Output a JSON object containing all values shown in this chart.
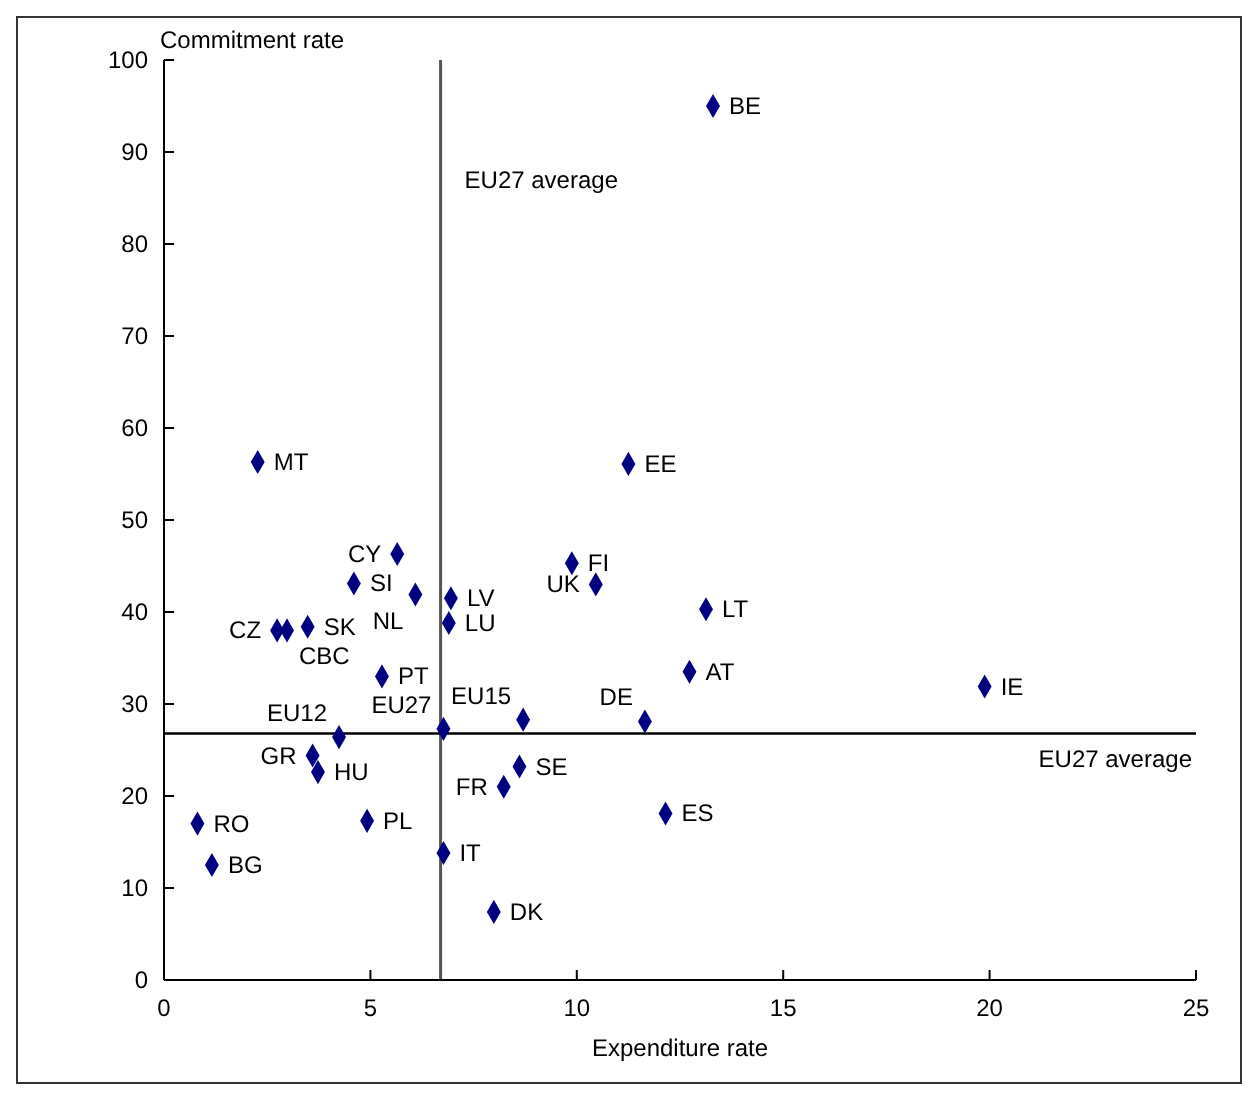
{
  "chart_data": {
    "type": "scatter",
    "xlabel": "Expenditure rate",
    "ylabel": "Commitment rate",
    "x": [
      13.3,
      2.27,
      11.25,
      5.65,
      9.88,
      4.6,
      6.09,
      6.95,
      10.46,
      13.13,
      6.9,
      3.48,
      2.74,
      2.98,
      5.28,
      12.73,
      19.88,
      11.65,
      8.7,
      6.77,
      4.24,
      3.6,
      8.61,
      3.73,
      8.23,
      12.15,
      0.81,
      4.92,
      6.77,
      1.16,
      7.99
    ],
    "series": [
      {
        "color": "#000080",
        "values": [
          95,
          56.3,
          56.1,
          46.3,
          45.3,
          43.1,
          41.9,
          41.5,
          43.0,
          40.3,
          38.8,
          38.4,
          38.0,
          38.0,
          33.0,
          33.5,
          31.9,
          28.1,
          28.3,
          27.3,
          26.4,
          24.4,
          23.2,
          22.6,
          21.0,
          18.1,
          17.0,
          17.3,
          13.8,
          12.5,
          7.4
        ]
      }
    ],
    "marker": "diamond",
    "xlim": [
      0,
      25
    ],
    "ylim": [
      0,
      100
    ],
    "xticks": [
      0,
      5,
      10,
      15,
      20,
      25
    ],
    "yticks": [
      0,
      10,
      20,
      30,
      40,
      50,
      60,
      70,
      80,
      90,
      100
    ],
    "grid": false,
    "ref_lines": [
      {
        "axis": "x",
        "value": 6.7,
        "label": "EU27 average",
        "color": "#555555"
      },
      {
        "axis": "y",
        "value": 26.8,
        "label": "EU27 average",
        "color": "#000000"
      }
    ],
    "annotations": [
      {
        "text": "BE",
        "x": 13.3,
        "y": 95
      },
      {
        "text": "MT",
        "x": 2.27,
        "y": 56.3
      },
      {
        "text": "EE",
        "x": 11.25,
        "y": 56.1
      },
      {
        "text": "CY",
        "x": 5.65,
        "y": 46.3
      },
      {
        "text": "FI",
        "x": 9.88,
        "y": 45.3
      },
      {
        "text": "SI",
        "x": 4.6,
        "y": 43.1
      },
      {
        "text": "NL",
        "x": 6.09,
        "y": 41.9
      },
      {
        "text": "LV",
        "x": 6.95,
        "y": 41.5
      },
      {
        "text": "UK",
        "x": 10.46,
        "y": 43.0
      },
      {
        "text": "LT",
        "x": 13.13,
        "y": 40.3
      },
      {
        "text": "LU",
        "x": 6.9,
        "y": 38.8
      },
      {
        "text": "SK",
        "x": 3.48,
        "y": 38.4
      },
      {
        "text": "CZ",
        "x": 2.74,
        "y": 38.0
      },
      {
        "text": "CBC",
        "x": 2.98,
        "y": 38.0
      },
      {
        "text": "PT",
        "x": 5.28,
        "y": 33.0
      },
      {
        "text": "AT",
        "x": 12.73,
        "y": 33.5
      },
      {
        "text": "IE",
        "x": 19.88,
        "y": 31.9
      },
      {
        "text": "DE",
        "x": 11.65,
        "y": 28.1
      },
      {
        "text": "EU15",
        "x": 8.7,
        "y": 28.3
      },
      {
        "text": "EU27",
        "x": 6.77,
        "y": 27.3
      },
      {
        "text": "EU12",
        "x": 4.24,
        "y": 26.4
      },
      {
        "text": "GR",
        "x": 3.6,
        "y": 24.4
      },
      {
        "text": "SE",
        "x": 8.61,
        "y": 23.2
      },
      {
        "text": "HU",
        "x": 3.73,
        "y": 22.6
      },
      {
        "text": "FR",
        "x": 8.23,
        "y": 21.0
      },
      {
        "text": "ES",
        "x": 12.15,
        "y": 18.1
      },
      {
        "text": "RO",
        "x": 0.81,
        "y": 17.0
      },
      {
        "text": "PL",
        "x": 4.92,
        "y": 17.3
      },
      {
        "text": "IT",
        "x": 6.77,
        "y": 13.8
      },
      {
        "text": "BG",
        "x": 1.16,
        "y": 12.5
      },
      {
        "text": "DK",
        "x": 7.99,
        "y": 7.4
      }
    ]
  }
}
